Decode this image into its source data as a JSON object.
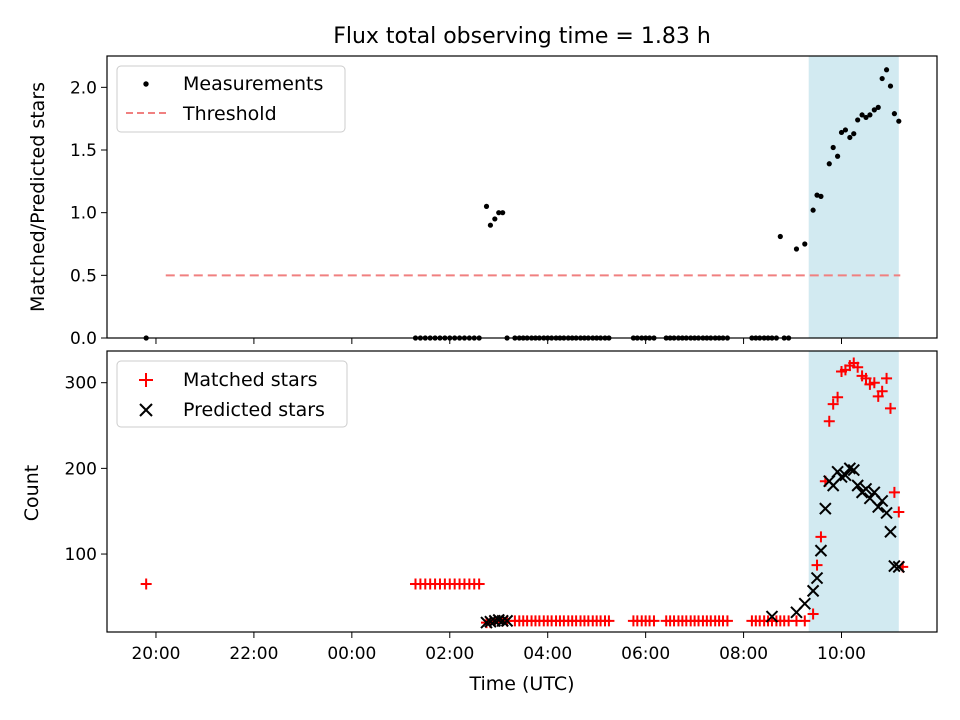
{
  "chart_data": {
    "title": "Flux total observing time = 1.83 h",
    "xlabel": "Time (UTC)",
    "x_unit": "hours relative to 00:00 UTC",
    "x_ticks": [
      {
        "value": -4,
        "label": "20:00"
      },
      {
        "value": -2,
        "label": "22:00"
      },
      {
        "value": 0,
        "label": "00:00"
      },
      {
        "value": 2,
        "label": "02:00"
      },
      {
        "value": 4,
        "label": "04:00"
      },
      {
        "value": 6,
        "label": "06:00"
      },
      {
        "value": 8,
        "label": "08:00"
      },
      {
        "value": 10,
        "label": "10:00"
      }
    ],
    "xlim": [
      -5.0,
      11.95
    ],
    "highlight_span": {
      "start": 9.33,
      "end": 11.17,
      "color": "#add8e6"
    },
    "panels": [
      {
        "id": "ratio",
        "type": "scatter",
        "ylabel": "Matched/Predicted stars",
        "ylim": [
          0,
          2.25
        ],
        "y_ticks": [
          {
            "value": 0,
            "label": "0.0"
          },
          {
            "value": 0.5,
            "label": "0.5"
          },
          {
            "value": 1.0,
            "label": "1.0"
          },
          {
            "value": 1.5,
            "label": "1.5"
          },
          {
            "value": 2.0,
            "label": "2.0"
          }
        ],
        "legend_position": "upper-left",
        "threshold": {
          "name": "Threshold",
          "value": 0.5,
          "x_range": [
            -3.8,
            11.2
          ],
          "color": "#f08080"
        },
        "series": [
          {
            "name": "Measurements",
            "marker": "dot",
            "color": "#000000",
            "x": [
              -4.2,
              1.3,
              1.4,
              1.5,
              1.6,
              1.7,
              1.8,
              1.9,
              2.0,
              2.1,
              2.2,
              2.3,
              2.4,
              2.5,
              2.6,
              2.75,
              2.83,
              2.92,
              3.0,
              3.08,
              3.17,
              3.33,
              3.42,
              3.5,
              3.58,
              3.67,
              3.75,
              3.83,
              3.92,
              4.0,
              4.08,
              4.17,
              4.25,
              4.33,
              4.42,
              4.5,
              4.58,
              4.67,
              4.75,
              4.83,
              4.92,
              5.0,
              5.08,
              5.17,
              5.25,
              5.75,
              5.83,
              5.92,
              6.0,
              6.08,
              6.17,
              6.42,
              6.5,
              6.58,
              6.67,
              6.75,
              6.83,
              6.92,
              7.0,
              7.08,
              7.17,
              7.25,
              7.33,
              7.42,
              7.5,
              7.58,
              7.67,
              8.17,
              8.25,
              8.33,
              8.42,
              8.5,
              8.58,
              8.67,
              8.75,
              8.83,
              8.92,
              9.08,
              9.25,
              9.42,
              9.5,
              9.58,
              9.75,
              9.83,
              9.92,
              10.0,
              10.08,
              10.17,
              10.25,
              10.33,
              10.42,
              10.5,
              10.58,
              10.67,
              10.75,
              10.83,
              10.92,
              11.0,
              11.08,
              11.17
            ],
            "y": [
              0,
              0,
              0,
              0,
              0,
              0,
              0,
              0,
              0,
              0,
              0,
              0,
              0,
              0,
              0,
              1.05,
              0.9,
              0.95,
              1.0,
              1.0,
              0,
              0,
              0,
              0,
              0,
              0,
              0,
              0,
              0,
              0,
              0,
              0,
              0,
              0,
              0,
              0,
              0,
              0,
              0,
              0,
              0,
              0,
              0,
              0,
              0,
              0,
              0,
              0,
              0,
              0,
              0,
              0,
              0,
              0,
              0,
              0,
              0,
              0,
              0,
              0,
              0,
              0,
              0,
              0,
              0,
              0,
              0,
              0,
              0,
              0,
              0,
              0,
              0,
              0,
              0.81,
              0,
              0,
              0.71,
              0.75,
              1.02,
              1.14,
              1.13,
              1.39,
              1.52,
              1.45,
              1.64,
              1.66,
              1.6,
              1.63,
              1.74,
              1.78,
              1.76,
              1.78,
              1.82,
              1.84,
              2.07,
              2.14,
              2.01,
              1.79,
              1.73
            ]
          }
        ]
      },
      {
        "id": "counts",
        "type": "scatter",
        "ylabel": "Count",
        "ylim": [
          9,
          337
        ],
        "y_ticks": [
          {
            "value": 100,
            "label": "100"
          },
          {
            "value": 200,
            "label": "200"
          },
          {
            "value": 300,
            "label": "300"
          }
        ],
        "legend_position": "upper-left",
        "series": [
          {
            "name": "Matched stars",
            "marker": "plus",
            "color": "#ff0000",
            "x": [
              -4.2,
              1.3,
              1.4,
              1.5,
              1.6,
              1.7,
              1.8,
              1.9,
              2.0,
              2.1,
              2.2,
              2.3,
              2.4,
              2.5,
              2.6,
              2.75,
              2.83,
              2.92,
              3.0,
              3.08,
              3.17,
              3.33,
              3.42,
              3.5,
              3.58,
              3.67,
              3.75,
              3.83,
              3.92,
              4.0,
              4.08,
              4.17,
              4.25,
              4.33,
              4.42,
              4.5,
              4.58,
              4.67,
              4.75,
              4.83,
              4.92,
              5.0,
              5.08,
              5.17,
              5.25,
              5.75,
              5.83,
              5.92,
              6.0,
              6.08,
              6.17,
              6.42,
              6.5,
              6.58,
              6.67,
              6.75,
              6.83,
              6.92,
              7.0,
              7.08,
              7.17,
              7.25,
              7.33,
              7.42,
              7.5,
              7.58,
              7.67,
              8.17,
              8.25,
              8.33,
              8.42,
              8.5,
              8.58,
              8.67,
              8.75,
              8.83,
              8.92,
              9.08,
              9.25,
              9.42,
              9.5,
              9.58,
              9.67,
              9.75,
              9.83,
              9.92,
              10.0,
              10.08,
              10.17,
              10.25,
              10.33,
              10.42,
              10.5,
              10.58,
              10.67,
              10.75,
              10.83,
              10.92,
              11.0,
              11.08,
              11.17,
              11.25
            ],
            "y": [
              65,
              65,
              65,
              65,
              65,
              65,
              65,
              65,
              65,
              65,
              65,
              65,
              65,
              65,
              65,
              20,
              20,
              22,
              22,
              22,
              22,
              22,
              22,
              22,
              22,
              22,
              22,
              22,
              22,
              22,
              22,
              22,
              22,
              22,
              22,
              22,
              22,
              22,
              22,
              22,
              22,
              22,
              22,
              22,
              22,
              22,
              22,
              22,
              22,
              22,
              22,
              22,
              22,
              22,
              22,
              22,
              22,
              22,
              22,
              22,
              22,
              22,
              22,
              22,
              22,
              22,
              22,
              22,
              22,
              22,
              22,
              22,
              22,
              22,
              22,
              22,
              22,
              22,
              22,
              30,
              87,
              120,
              185,
              255,
              275,
              283,
              313,
              315,
              320,
              323,
              318,
              308,
              305,
              298,
              300,
              284,
              290,
              305,
              270,
              172,
              149,
              85
            ]
          },
          {
            "name": "Predicted stars",
            "marker": "x",
            "color": "#000000",
            "x": [
              2.75,
              2.83,
              2.92,
              3.0,
              3.08,
              3.17,
              8.58,
              9.08,
              9.25,
              9.42,
              9.5,
              9.58,
              9.67,
              9.75,
              9.83,
              9.92,
              10.0,
              10.08,
              10.17,
              10.25,
              10.33,
              10.42,
              10.5,
              10.58,
              10.67,
              10.75,
              10.83,
              10.92,
              11.0,
              11.08,
              11.17
            ],
            "y": [
              20,
              21,
              22,
              23,
              22,
              22,
              27,
              32,
              42,
              57,
              72,
              104,
              153,
              185,
              180,
              196,
              190,
              192,
              200,
              198,
              180,
              172,
              176,
              165,
              172,
              155,
              162,
              148,
              126,
              86,
              85
            ]
          }
        ]
      }
    ]
  }
}
